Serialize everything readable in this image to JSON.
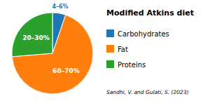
{
  "chart_data": {
    "type": "pie",
    "title": "Modified Atkins diet",
    "categories": [
      "Carbohydrates",
      "Fat",
      "Proteins"
    ],
    "values": [
      5,
      65,
      25
    ],
    "value_labels": [
      "4–6%",
      "60–70%",
      "20–30%"
    ],
    "data_labels": true,
    "legend": "right",
    "annotations": [
      "Sandhi, V. and Gulati, S. (2023)"
    ]
  }
}
